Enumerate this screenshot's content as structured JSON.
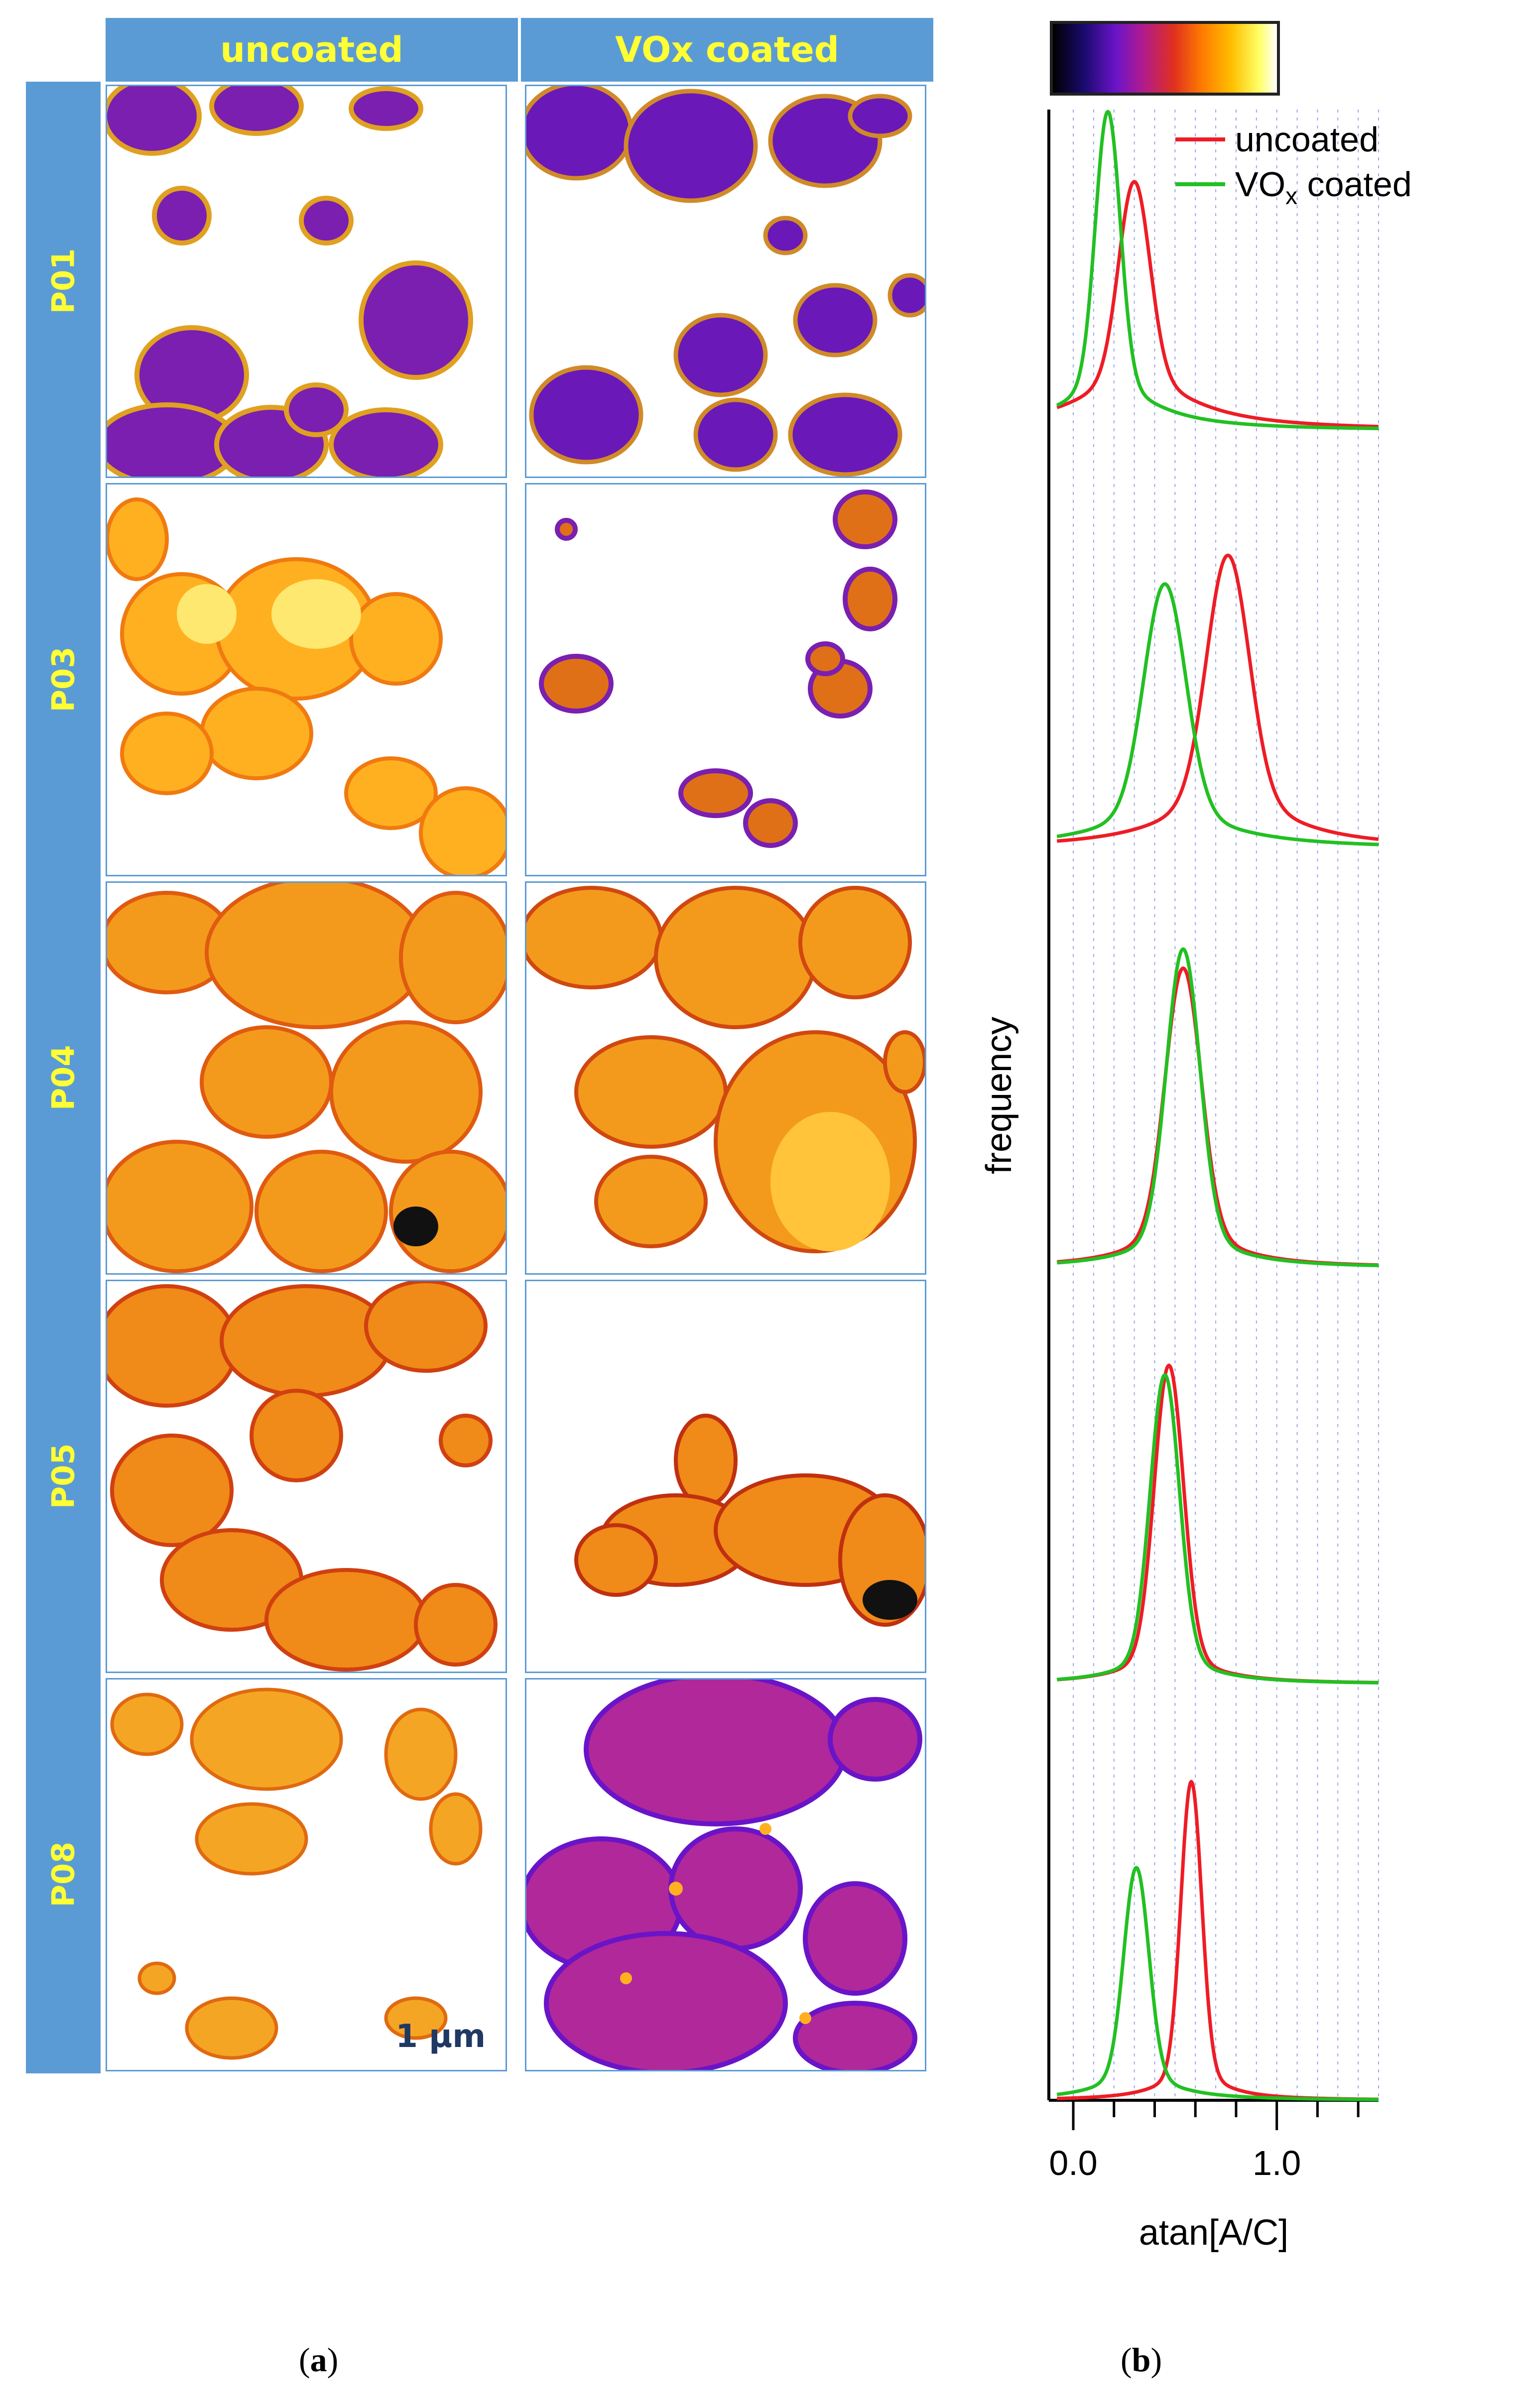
{
  "figure_a": {
    "caption": "a",
    "columns": [
      "uncoated",
      "VOx coated"
    ],
    "rows": [
      "P01",
      "P03",
      "P04",
      "P05",
      "P08"
    ],
    "scale_bar": "1 µm"
  },
  "figure_b": {
    "caption": "b",
    "colorbar": {
      "colors": [
        "#000000",
        "#1a0a6e",
        "#6a14c8",
        "#b01a90",
        "#e0301e",
        "#ff7d00",
        "#ffc000",
        "#ffff66",
        "#ffffff"
      ]
    }
  },
  "chart_data": {
    "type": "line",
    "xlabel": "atan[A/C]",
    "ylabel": "frequency",
    "xlim": [
      -0.12,
      1.5
    ],
    "x_ticks": [
      "0.0",
      "1.0"
    ],
    "grid": "vertical dashed",
    "legend_position": "top-right",
    "legend": [
      {
        "label": "uncoated",
        "color": "#ee1c25"
      },
      {
        "label": "VO",
        "subscript": "x",
        "suffix": " coated",
        "color": "#22c022"
      }
    ],
    "panels": [
      {
        "name": "P01",
        "series": [
          {
            "name": "uncoated",
            "color": "#ee1c25",
            "peak": 0.3,
            "width": 0.075,
            "height": 0.78,
            "tail": 0.22,
            "tail_width": 0.32
          },
          {
            "name": "VOx coated",
            "color": "#22c022",
            "peak": 0.17,
            "width": 0.06,
            "height": 1.0,
            "tail": 0.15,
            "tail_width": 0.26
          }
        ]
      },
      {
        "name": "P03",
        "series": [
          {
            "name": "uncoated",
            "color": "#ee1c25",
            "peak": 0.76,
            "width": 0.1,
            "height": 0.92,
            "tail": 0.2,
            "tail_width": 0.32
          },
          {
            "name": "VOx coated",
            "color": "#22c022",
            "peak": 0.45,
            "width": 0.1,
            "height": 0.83,
            "tail": 0.15,
            "tail_width": 0.35
          }
        ]
      },
      {
        "name": "P04",
        "series": [
          {
            "name": "uncoated",
            "color": "#ee1c25",
            "peak": 0.54,
            "width": 0.085,
            "height": 0.94,
            "tail": 0.14,
            "tail_width": 0.25
          },
          {
            "name": "VOx coated",
            "color": "#22c022",
            "peak": 0.54,
            "width": 0.08,
            "height": 1.0,
            "tail": 0.12,
            "tail_width": 0.24
          }
        ]
      },
      {
        "name": "P05",
        "series": [
          {
            "name": "uncoated",
            "color": "#ee1c25",
            "peak": 0.47,
            "width": 0.07,
            "height": 1.0,
            "tail": 0.1,
            "tail_width": 0.22
          },
          {
            "name": "VOx coated",
            "color": "#22c022",
            "peak": 0.45,
            "width": 0.07,
            "height": 0.97,
            "tail": 0.1,
            "tail_width": 0.22
          }
        ]
      },
      {
        "name": "P08",
        "series": [
          {
            "name": "uncoated",
            "color": "#ee1c25",
            "peak": 0.58,
            "width": 0.05,
            "height": 1.0,
            "tail": 0.1,
            "tail_width": 0.16
          },
          {
            "name": "VOx coated",
            "color": "#22c022",
            "peak": 0.31,
            "width": 0.06,
            "height": 0.73,
            "tail": 0.12,
            "tail_width": 0.2
          }
        ]
      }
    ]
  }
}
